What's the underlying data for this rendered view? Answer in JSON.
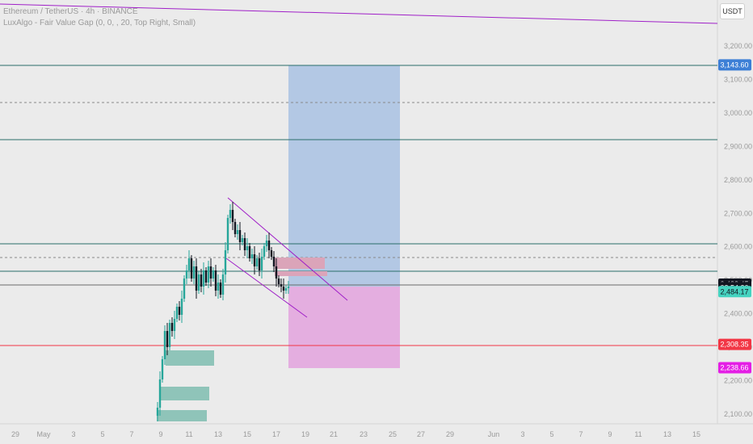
{
  "legend": {
    "symbol_line": "Ethereum / TetherUS · 4h · BINANCE",
    "indicator_line": "LuxAlgo - Fair Value Gap (0, 0, , 20, Top Right, Small)"
  },
  "currency_button": "USDT",
  "price_axis": {
    "ticks": [
      "3,200.00",
      "3,100.00",
      "3,000.00",
      "2,900.00",
      "2,800.00",
      "2,700.00",
      "2,600.00",
      "2,500.00",
      "2,400.00",
      "2,300.00",
      "2,200.00",
      "2,100.00"
    ]
  },
  "time_axis": {
    "labels": [
      "29",
      "May",
      "3",
      "5",
      "7",
      "9",
      "11",
      "13",
      "15",
      "17",
      "19",
      "21",
      "23",
      "25",
      "27",
      "29",
      "Jun",
      "3",
      "5",
      "7",
      "9",
      "11",
      "13",
      "15"
    ]
  },
  "price_tags": [
    {
      "name": "target-price-tag",
      "text": "3,143.60",
      "color": "#3d7fd6",
      "text_color": "#ffffff",
      "price": 3143.6
    },
    {
      "name": "last-price-tag",
      "text": "2,488.45",
      "color": "#131722",
      "text_color": "#ffffff",
      "price": 2488.45
    },
    {
      "name": "countdown-tag",
      "text": "02:54:30",
      "color": "#131722",
      "text_color": "#ffffff",
      "price": 2478
    },
    {
      "name": "entry-price-tag",
      "text": "2,484.17",
      "color": "#45d3c0",
      "text_color": "#131722",
      "price": 2466
    },
    {
      "name": "support-price-tag",
      "text": "2,308.35",
      "color": "#f23645",
      "text_color": "#ffffff",
      "price": 2308.35
    },
    {
      "name": "stop-price-tag",
      "text": "2,238.66",
      "color": "#e41ee5",
      "text_color": "#ffffff",
      "price": 2238.66
    }
  ],
  "colors": {
    "bull": "#26a69a",
    "bear": "#131722",
    "horizontal_line": "#2a6e6a",
    "support_line": "#f23645",
    "trendline": "#a020c8",
    "target_zone": "#b0c8e6",
    "stop_zone": "#e8a6dc",
    "bull_fvg": "#8fc4b9",
    "bear_fvg": "#dba4b9"
  }
}
